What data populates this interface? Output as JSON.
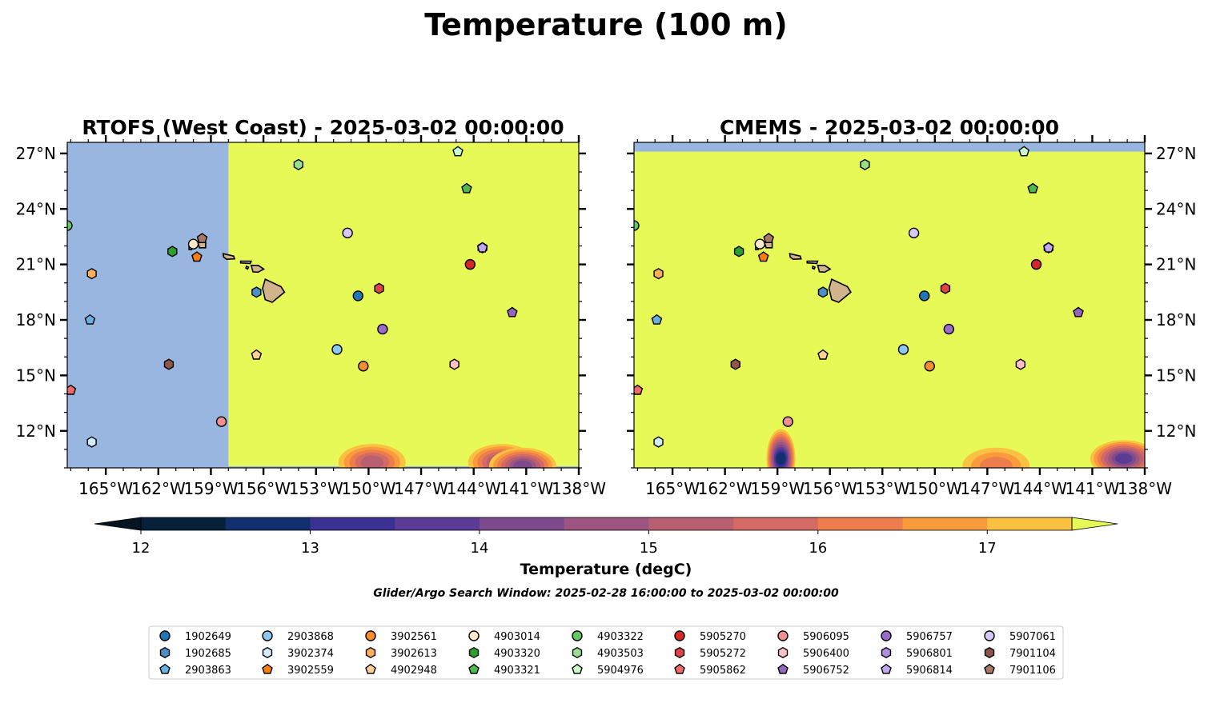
{
  "figure": {
    "suptitle": "Temperature (100 m)",
    "colorbar_label": "Temperature (degC)",
    "search_window": "Glider/Argo Search Window: 2025-02-28 16:00:00 to 2025-03-02 00:00:00"
  },
  "chart_data": [
    {
      "type": "map",
      "title": "RTOFS (West Coast) - 2025-03-02 00:00:00",
      "xlim": [
        -167.2,
        -138
      ],
      "ylim": [
        10,
        27.6
      ],
      "xticks": [
        "165°W",
        "162°W",
        "159°W",
        "156°W",
        "153°W",
        "150°W",
        "147°W",
        "144°W",
        "141°W",
        "138°W"
      ],
      "yticks": [
        "12°N",
        "15°N",
        "18°N",
        "21°N",
        "24°N",
        "27°N"
      ],
      "ytick_side": "left",
      "background": "above 17.5 degC east of 158°W; no data (land mask) west of 158°W",
      "cool_patches": [
        {
          "lon": -149.8,
          "lat": 10.3,
          "min_temp": 15.0
        },
        {
          "lon": -142.4,
          "lat": 10.3,
          "min_temp": 14.5
        },
        {
          "lon": -141.2,
          "lat": 10.1,
          "min_temp": 14.0
        }
      ]
    },
    {
      "type": "map",
      "title": "CMEMS - 2025-03-02 00:00:00",
      "xlim": [
        -167.2,
        -138
      ],
      "ylim": [
        10,
        27.6
      ],
      "xticks": [
        "165°W",
        "162°W",
        "159°W",
        "156°W",
        "153°W",
        "150°W",
        "147°W",
        "144°W",
        "141°W",
        "138°W"
      ],
      "yticks": [
        "12°N",
        "15°N",
        "18°N",
        "21°N",
        "24°N",
        "27°N"
      ],
      "ytick_side": "right",
      "background": "above 17.5 degC; no data north of 27.1°N",
      "cool_patches": [
        {
          "lon": -158.8,
          "lat": 10.5,
          "min_temp": 12.5
        },
        {
          "lon": -139.2,
          "lat": 10.5,
          "min_temp": 13.5
        },
        {
          "lon": -146.5,
          "lat": 10.1,
          "min_temp": 16.0
        }
      ]
    }
  ],
  "colorbar": {
    "levels": [
      12,
      12.5,
      13,
      13.5,
      14,
      14.5,
      15,
      15.5,
      16,
      16.5,
      17,
      17.5
    ],
    "ticks": [
      "12",
      "13",
      "14",
      "15",
      "16",
      "17"
    ],
    "colors": [
      "#06203a",
      "#122f6e",
      "#3a3192",
      "#5a3b95",
      "#7d4a8d",
      "#9c5480",
      "#b95f72",
      "#d36a64",
      "#ed7d4d",
      "#f99b3c",
      "#fbc141",
      "#e6f957"
    ],
    "extend": "both",
    "under_color": "#041420"
  },
  "colors": {
    "nodata": "#98b6e0",
    "warm": "#e6f957",
    "land": "#d2b48c"
  },
  "floats": [
    {
      "id": "1902649",
      "marker": "circle",
      "color": "#1f77b4",
      "lon": -150.6,
      "lat": 19.3
    },
    {
      "id": "1902685",
      "marker": "hexagon",
      "color": "#4a8fc8",
      "lon": -156.4,
      "lat": 19.5
    },
    {
      "id": "2903863",
      "marker": "pentagon",
      "color": "#6ab0e0",
      "lon": -165.9,
      "lat": 18.0
    },
    {
      "id": "2903868",
      "marker": "circle",
      "color": "#8cc8f2",
      "lon": -151.8,
      "lat": 16.4
    },
    {
      "id": "3902374",
      "marker": "hexagon",
      "color": "#d2ecfb",
      "lon": -165.8,
      "lat": 11.4
    },
    {
      "id": "3902559",
      "marker": "pentagon",
      "color": "#ff7f0e",
      "lon": -159.8,
      "lat": 21.4
    },
    {
      "id": "3902561",
      "marker": "circle",
      "color": "#f88f2c",
      "lon": -150.3,
      "lat": 15.5
    },
    {
      "id": "3902613",
      "marker": "hexagon",
      "color": "#fbae5e",
      "lon": -165.8,
      "lat": 20.5
    },
    {
      "id": "4902948",
      "marker": "pentagon",
      "color": "#fdd09a",
      "lon": -156.4,
      "lat": 16.1
    },
    {
      "id": "4903014",
      "marker": "circle",
      "color": "#fde8cc",
      "lon": -160.0,
      "lat": 22.1
    },
    {
      "id": "4903320",
      "marker": "hexagon",
      "color": "#2ca02c",
      "lon": -161.2,
      "lat": 21.7
    },
    {
      "id": "4903321",
      "marker": "pentagon",
      "color": "#4fb84f",
      "lon": -144.4,
      "lat": 25.1
    },
    {
      "id": "4903322",
      "marker": "circle",
      "color": "#64c864",
      "lon": -167.2,
      "lat": 23.1
    },
    {
      "id": "4903503",
      "marker": "hexagon",
      "color": "#98df8a",
      "lon": -154.0,
      "lat": 26.4
    },
    {
      "id": "5904976",
      "marker": "pentagon",
      "color": "#c8fbc8",
      "lon": -144.9,
      "lat": 27.1
    },
    {
      "id": "5905270",
      "marker": "circle",
      "color": "#d62728",
      "lon": -144.2,
      "lat": 21.0
    },
    {
      "id": "5905272",
      "marker": "hexagon",
      "color": "#e04545",
      "lon": -149.4,
      "lat": 19.7
    },
    {
      "id": "5905862",
      "marker": "pentagon",
      "color": "#ee6a6a",
      "lon": -167.0,
      "lat": 14.2
    },
    {
      "id": "5906095",
      "marker": "circle",
      "color": "#f09090",
      "lon": -158.4,
      "lat": 12.5
    },
    {
      "id": "5906400",
      "marker": "hexagon",
      "color": "#ffc0c4",
      "lon": -145.1,
      "lat": 15.6
    },
    {
      "id": "5906752",
      "marker": "pentagon",
      "color": "#9467bd",
      "lon": -141.8,
      "lat": 18.4
    },
    {
      "id": "5906757",
      "marker": "circle",
      "color": "#9a6bc8",
      "lon": -149.2,
      "lat": 17.5
    },
    {
      "id": "5906801",
      "marker": "hexagon",
      "color": "#b28ee0",
      "lon": -143.5,
      "lat": 21.9
    },
    {
      "id": "5906814",
      "marker": "pentagon",
      "color": "#c4a8ee",
      "lon": -143.5,
      "lat": 21.9
    },
    {
      "id": "5907061",
      "marker": "circle",
      "color": "#d8c8f8",
      "lon": -151.2,
      "lat": 22.7
    },
    {
      "id": "7901104",
      "marker": "hexagon",
      "color": "#8c564b",
      "lon": -161.4,
      "lat": 15.6
    },
    {
      "id": "7901106",
      "marker": "pentagon",
      "color": "#a87868",
      "lon": -159.5,
      "lat": 22.4
    }
  ]
}
